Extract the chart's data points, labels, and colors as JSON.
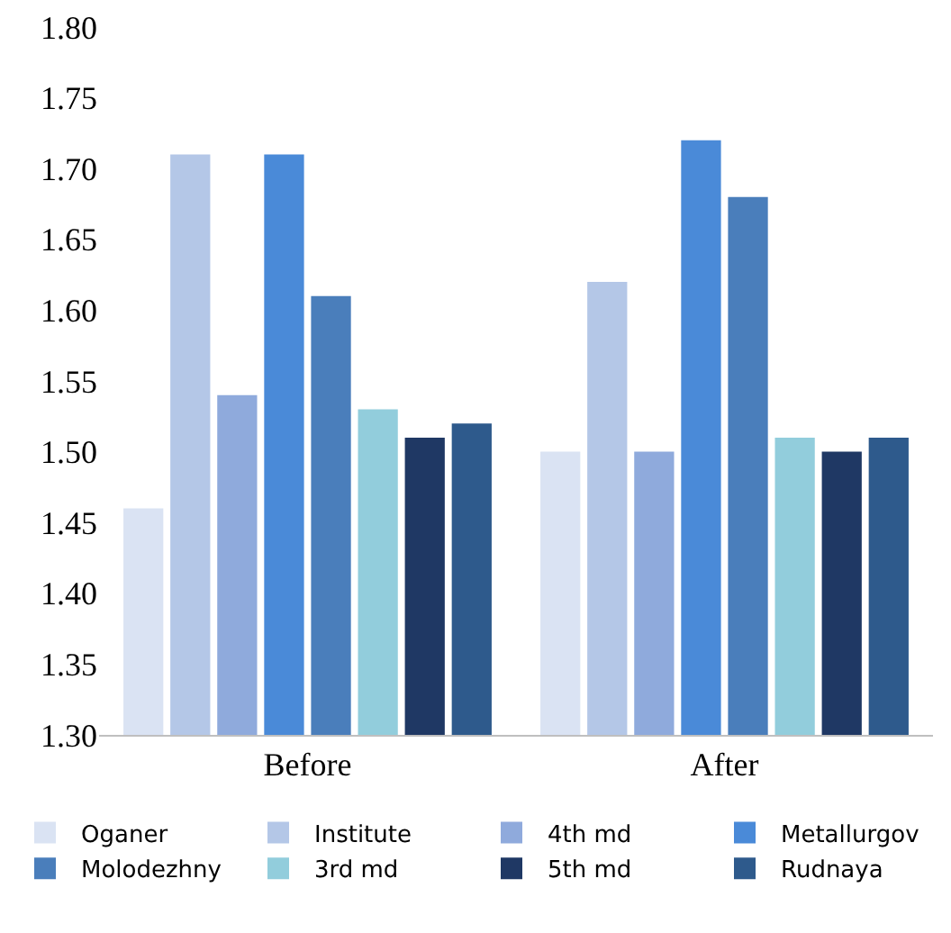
{
  "chart_data": {
    "type": "bar",
    "categories": [
      "Before",
      "After"
    ],
    "series": [
      {
        "name": "Oganer",
        "color": "#dae3f3",
        "values": [
          1.46,
          1.5
        ]
      },
      {
        "name": "Institute",
        "color": "#b4c7e7",
        "values": [
          1.71,
          1.62
        ]
      },
      {
        "name": "4th md",
        "color": "#8faadc",
        "values": [
          1.54,
          1.5
        ]
      },
      {
        "name": "Metallurgov",
        "color": "#4a8ad8",
        "values": [
          1.71,
          1.72
        ]
      },
      {
        "name": "Molodezhny",
        "color": "#4a7ebb",
        "values": [
          1.61,
          1.68
        ]
      },
      {
        "name": "3rd md",
        "color": "#92cddc",
        "values": [
          1.53,
          1.51
        ]
      },
      {
        "name": "5th md",
        "color": "#1f3864",
        "values": [
          1.51,
          1.5
        ]
      },
      {
        "name": "Rudnaya",
        "color": "#2e5a8c",
        "values": [
          1.52,
          1.51
        ]
      }
    ],
    "ylim": [
      1.3,
      1.8
    ],
    "yticks": [
      {
        "value": 1.3,
        "label": "1.30"
      },
      {
        "value": 1.35,
        "label": "1.35"
      },
      {
        "value": 1.4,
        "label": "1.40"
      },
      {
        "value": 1.45,
        "label": "1.45"
      },
      {
        "value": 1.5,
        "label": "1.50"
      },
      {
        "value": 1.55,
        "label": "1.55"
      },
      {
        "value": 1.6,
        "label": "1.60"
      },
      {
        "value": 1.65,
        "label": "1.65"
      },
      {
        "value": 1.7,
        "label": "1.70"
      },
      {
        "value": 1.75,
        "label": "1.75"
      },
      {
        "value": 1.8,
        "label": "1.80"
      }
    ],
    "grid": false,
    "legend": "bottom"
  }
}
